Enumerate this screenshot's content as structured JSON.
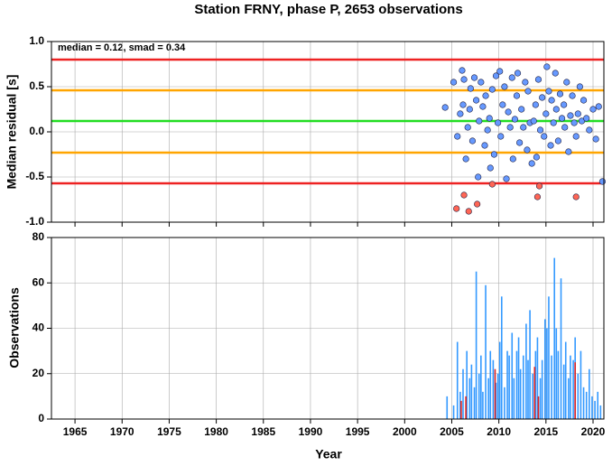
{
  "chart_data": [
    {
      "type": "scatter",
      "title": "Station FRNY, phase P, 2653 observations",
      "ylabel": "Median residual [s]",
      "annotation": "median = 0.12, smad = 0.34",
      "xlim": [
        1962.5,
        2021.15
      ],
      "xticks": [
        1965,
        1970,
        1975,
        1980,
        1985,
        1990,
        1995,
        2000,
        2005,
        2010,
        2015,
        2020
      ],
      "ylim": [
        -1,
        1
      ],
      "yticks": [
        {
          "value": -1,
          "label": "-1.0"
        },
        -0.5,
        {
          "value": 0,
          "label": "0.0"
        },
        0.5,
        {
          "value": 1,
          "label": "1.0"
        }
      ],
      "grid": true,
      "hlines": [
        {
          "value": 0.8,
          "color": "#ee2222"
        },
        {
          "value": 0.46,
          "color": "#ffa500"
        },
        {
          "value": 0.12,
          "color": "#22dd22"
        },
        {
          "value": -0.23,
          "color": "#ffa500"
        },
        {
          "value": -0.57,
          "color": "#ee2222"
        }
      ],
      "series": [
        {
          "color": "#6699ff",
          "x": [
            2004.3,
            2005.2,
            2005.6,
            2005.9,
            2006.1,
            2006.2,
            2006.3,
            2006.5,
            2006.7,
            2006.9,
            2007.0,
            2007.2,
            2007.4,
            2007.6,
            2007.8,
            2007.9,
            2008.1,
            2008.3,
            2008.5,
            2008.6,
            2008.8,
            2009.0,
            2009.1,
            2009.3,
            2009.5,
            2009.7,
            2009.9,
            2010.1,
            2010.2,
            2010.4,
            2010.6,
            2010.8,
            2011.0,
            2011.2,
            2011.4,
            2011.5,
            2011.7,
            2011.9,
            2012.0,
            2012.2,
            2012.4,
            2012.6,
            2012.8,
            2013.0,
            2013.1,
            2013.3,
            2013.5,
            2013.7,
            2013.9,
            2014.0,
            2014.2,
            2014.4,
            2014.6,
            2014.8,
            2015.0,
            2015.1,
            2015.3,
            2015.5,
            2015.6,
            2015.8,
            2016.0,
            2016.1,
            2016.3,
            2016.5,
            2016.7,
            2016.9,
            2017.0,
            2017.2,
            2017.4,
            2017.6,
            2017.8,
            2018.0,
            2018.2,
            2018.4,
            2018.6,
            2018.8,
            2019.0,
            2019.3,
            2019.6,
            2020.0,
            2020.3,
            2020.6,
            2021.0
          ],
          "y": [
            0.27,
            0.55,
            -0.05,
            0.2,
            0.68,
            0.3,
            0.58,
            -0.3,
            0.05,
            0.25,
            0.48,
            -0.1,
            0.6,
            0.35,
            -0.5,
            0.12,
            0.55,
            0.28,
            -0.15,
            0.4,
            0.02,
            0.15,
            -0.4,
            0.47,
            -0.25,
            0.62,
            0.1,
            0.67,
            -0.05,
            0.3,
            0.5,
            -0.52,
            0.22,
            0.05,
            0.6,
            -0.3,
            0.14,
            0.4,
            0.65,
            -0.12,
            0.25,
            0.05,
            0.55,
            -0.2,
            0.45,
            0.1,
            -0.35,
            0.12,
            0.3,
            -0.28,
            0.58,
            0.02,
            0.38,
            -0.05,
            0.2,
            0.72,
            0.45,
            -0.15,
            0.35,
            0.1,
            0.65,
            0.25,
            -0.1,
            0.42,
            0.15,
            0.3,
            0.05,
            0.55,
            -0.22,
            0.18,
            0.4,
            0.1,
            -0.05,
            0.2,
            0.5,
            0.12,
            0.35,
            0.15,
            0.02,
            0.25,
            -0.08,
            0.28,
            -0.55
          ]
        },
        {
          "color": "#ff6655",
          "x": [
            2005.5,
            2006.3,
            2006.8,
            2007.7,
            2009.3,
            2014.1,
            2014.3,
            2018.2
          ],
          "y": [
            -0.85,
            -0.7,
            -0.88,
            -0.8,
            -0.58,
            -0.72,
            -0.6,
            -0.72
          ]
        }
      ]
    },
    {
      "type": "bar",
      "xlabel": "Year",
      "ylabel": "Observations",
      "xlim": [
        1962.5,
        2021.15
      ],
      "xticks": [
        1965,
        1970,
        1975,
        1980,
        1985,
        1990,
        1995,
        2000,
        2005,
        2010,
        2015,
        2020
      ],
      "ylim": [
        0,
        80
      ],
      "yticks": [
        0,
        20,
        40,
        60,
        80
      ],
      "grid": true,
      "series": [
        {
          "color": "#3399ff",
          "x": [
            2004.5,
            2005.2,
            2005.6,
            2005.9,
            2006.2,
            2006.6,
            2006.9,
            2007.1,
            2007.4,
            2007.6,
            2007.9,
            2008.1,
            2008.3,
            2008.6,
            2008.9,
            2009.1,
            2009.4,
            2009.7,
            2009.9,
            2010.1,
            2010.3,
            2010.6,
            2010.9,
            2011.1,
            2011.4,
            2011.6,
            2011.9,
            2012.1,
            2012.3,
            2012.6,
            2012.9,
            2013.1,
            2013.3,
            2013.6,
            2013.9,
            2014.1,
            2014.4,
            2014.6,
            2014.9,
            2015.1,
            2015.3,
            2015.6,
            2015.9,
            2016.1,
            2016.3,
            2016.6,
            2016.9,
            2017.1,
            2017.4,
            2017.6,
            2017.9,
            2018.1,
            2018.4,
            2018.7,
            2019.0,
            2019.3,
            2019.6,
            2019.9,
            2020.2,
            2020.5,
            2020.8
          ],
          "values": [
            10,
            6,
            34,
            12,
            22,
            30,
            18,
            24,
            14,
            65,
            20,
            28,
            12,
            59,
            18,
            30,
            26,
            16,
            20,
            34,
            54,
            14,
            30,
            28,
            38,
            18,
            30,
            36,
            22,
            28,
            42,
            26,
            48,
            20,
            30,
            36,
            18,
            26,
            44,
            40,
            54,
            28,
            71,
            40,
            30,
            62,
            24,
            34,
            18,
            28,
            26,
            36,
            20,
            30,
            14,
            12,
            22,
            10,
            8,
            12,
            6
          ]
        },
        {
          "color": "#dd2222",
          "x": [
            2006.0,
            2006.5,
            2009.6,
            2013.8,
            2014.2,
            2018.1
          ],
          "values": [
            8,
            10,
            22,
            23,
            10,
            25
          ]
        }
      ]
    }
  ]
}
